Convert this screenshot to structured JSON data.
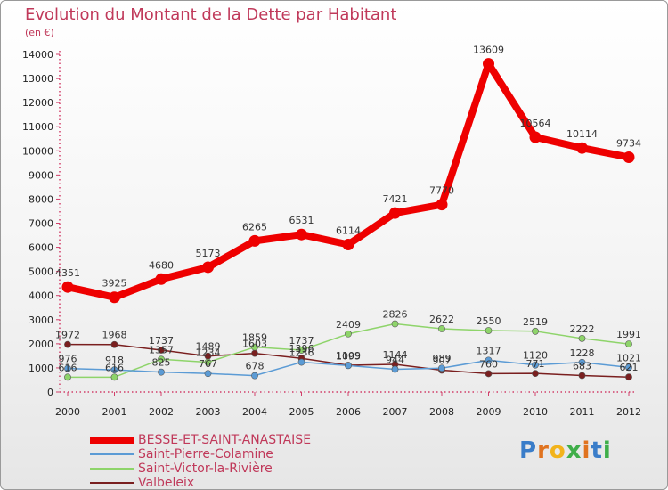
{
  "header": {
    "title": "Evolution du Montant de la Dette par Habitant",
    "subtitle": "(en €)"
  },
  "logo": {
    "text": "Proxiti",
    "letter_colors": [
      "#3a7dc9",
      "#e0731f",
      "#f2b31b",
      "#3fae49",
      "#e0731f",
      "#3a7dc9",
      "#3fae49"
    ]
  },
  "chart_data": {
    "type": "line",
    "title": "Evolution du Montant de la Dette par Habitant",
    "subtitle": "(en €)",
    "xlabel": "",
    "ylabel": "",
    "x": [
      "2000",
      "2001",
      "2002",
      "2003",
      "2004",
      "2005",
      "2006",
      "2007",
      "2008",
      "2009",
      "2010",
      "2011",
      "2012"
    ],
    "ylim": [
      0,
      14000
    ],
    "yticks": [
      0,
      1000,
      2000,
      3000,
      4000,
      5000,
      6000,
      7000,
      8000,
      9000,
      10000,
      11000,
      12000,
      13000,
      14000
    ],
    "grid": false,
    "legend_position": "bottom-left",
    "series": [
      {
        "name": "BESSE-ET-SAINT-ANASTAISE",
        "color": "#ee0000",
        "values": [
          4351,
          3925,
          4680,
          5173,
          6265,
          6531,
          6114,
          7421,
          7770,
          13609,
          10564,
          10114,
          9734
        ],
        "labels": [
          "4351",
          "3925",
          "4680",
          "5173",
          "6265",
          "6531",
          "6114",
          "7421",
          "7770",
          "13609",
          "10564",
          "10114",
          "9734"
        ]
      },
      {
        "name": "Saint-Pierre-Colamine",
        "color": "#5b9bd5",
        "values": [
          976,
          918,
          825,
          767,
          678,
          1236,
          1095,
          944,
          989,
          1317,
          1120,
          1228,
          1021
        ],
        "labels": [
          "976",
          "918",
          "825",
          "767",
          "678",
          "1236",
          "1095",
          "944",
          "989",
          "1317",
          "1120",
          "1228",
          "1021"
        ]
      },
      {
        "name": "Saint-Victor-la-Rivière",
        "color": "#8ed46a",
        "values": [
          616,
          616,
          1357,
          1234,
          1859,
          1737,
          2409,
          2826,
          2622,
          2550,
          2519,
          2222,
          1991
        ],
        "labels": [
          "616",
          "616",
          "1357",
          "1234",
          "1859",
          "1737",
          "2409",
          "2826",
          "2622",
          "2550",
          "2519",
          "2222",
          "1991"
        ]
      },
      {
        "name": "Valbeleix",
        "color": "#7a1f1f",
        "values": [
          1972,
          1968,
          1737,
          1489,
          1603,
          1396,
          1109,
          1144,
          907,
          760,
          771,
          683,
          621
        ],
        "labels": [
          "1972",
          "1968",
          "1737",
          "1489",
          "1603",
          "1396",
          "1109",
          "1144",
          "907",
          "760",
          "771",
          "683",
          "621"
        ]
      }
    ]
  }
}
